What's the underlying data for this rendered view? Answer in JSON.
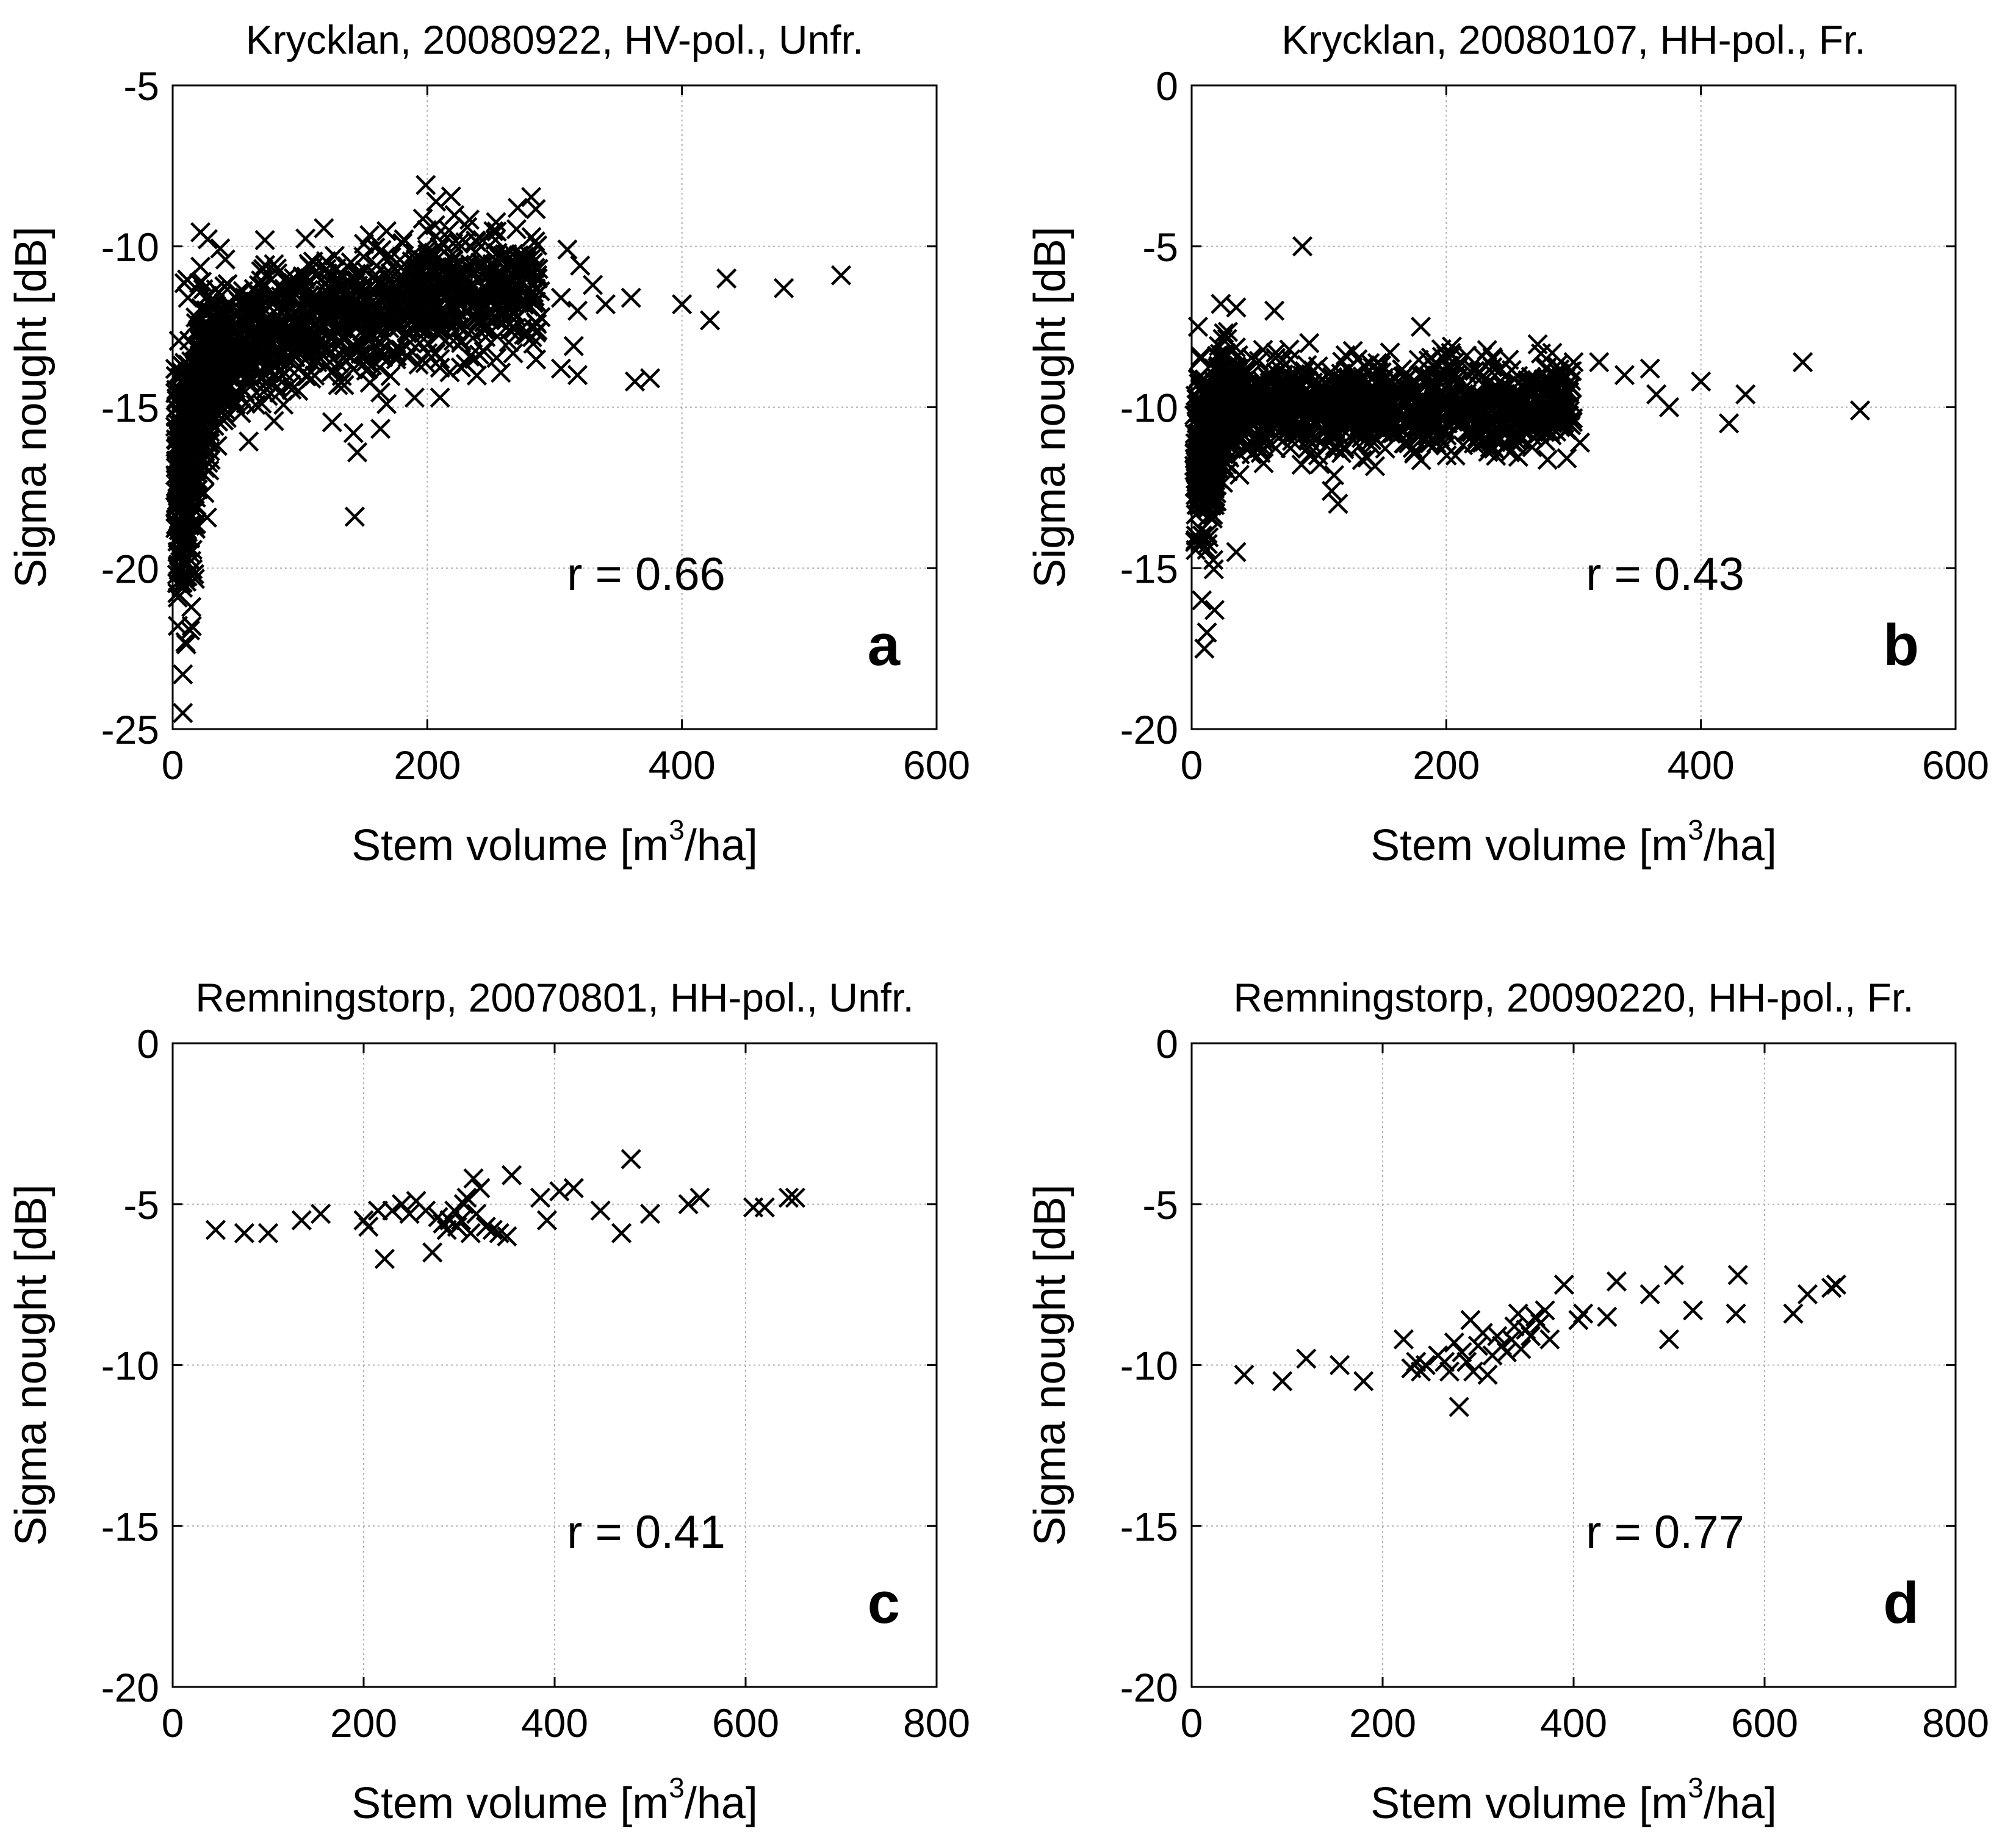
{
  "figure": {
    "description_keys": "four scatter panels of radar backscatter vs stem volume",
    "marker_color": "#000000",
    "grid_color": "#b0b0b0"
  },
  "chart_data": [
    {
      "type": "scatter",
      "panel": "a",
      "title": "Krycklan, 20080922, HV-pol., Unfr.",
      "xlabel": "Stem volume",
      "xlabel_unit_prefix": "[m",
      "xlabel_unit_sup": "3",
      "xlabel_unit_suffix": "/ha]",
      "ylabel": "Sigma nought  [dB]",
      "xlim": [
        0,
        600
      ],
      "ylim": [
        -25,
        -5
      ],
      "xticks": [
        0,
        200,
        400,
        600
      ],
      "yticks": [
        -25,
        -20,
        -15,
        -10,
        -5
      ],
      "annotation": "r = 0.66",
      "grid": true,
      "cluster": {
        "seed": 11,
        "count": 1600,
        "x": [
          2,
          290
        ],
        "model": "a",
        "a": -17.5,
        "b": 1.1,
        "vmin": 4,
        "noise": 1.0,
        "frac_low": 0.25
      },
      "outliers": [
        [
          310,
          -10.1
        ],
        [
          320,
          -10.6
        ],
        [
          330,
          -11.2
        ],
        [
          305,
          -11.6
        ],
        [
          318,
          -12.0
        ],
        [
          340,
          -11.8
        ],
        [
          315,
          -13.1
        ],
        [
          305,
          -13.8
        ],
        [
          318,
          -14.0
        ],
        [
          360,
          -11.6
        ],
        [
          363,
          -14.2
        ],
        [
          375,
          -14.1
        ],
        [
          400,
          -11.8
        ],
        [
          422,
          -12.3
        ],
        [
          435,
          -11.0
        ],
        [
          480,
          -11.3
        ],
        [
          525,
          -10.9
        ],
        [
          143,
          -18.4
        ],
        [
          145,
          -16.4
        ],
        [
          142,
          -15.8
        ],
        [
          168,
          -14.9
        ],
        [
          190,
          -14.7
        ],
        [
          210,
          -14.7
        ],
        [
          255,
          -12.8
        ],
        [
          270,
          -12.2
        ],
        [
          140,
          -10.5
        ],
        [
          12,
          -11.6
        ],
        [
          8,
          -24.5
        ],
        [
          8,
          -23.3
        ],
        [
          10,
          -22.3
        ],
        [
          15,
          -21.8
        ],
        [
          6,
          -19.3
        ]
      ]
    },
    {
      "type": "scatter",
      "panel": "b",
      "title": "Krycklan, 20080107, HH-pol., Fr.",
      "xlabel": "Stem volume",
      "xlabel_unit_prefix": "[m",
      "xlabel_unit_sup": "3",
      "xlabel_unit_suffix": "/ha]",
      "ylabel": "Sigma nought  [dB]",
      "xlim": [
        0,
        600
      ],
      "ylim": [
        -20,
        0
      ],
      "xticks": [
        0,
        200,
        400,
        600
      ],
      "yticks": [
        -20,
        -15,
        -10,
        -5,
        0
      ],
      "annotation": "r = 0.43",
      "grid": true,
      "cluster": {
        "seed": 23,
        "count": 1600,
        "x": [
          2,
          300
        ],
        "model": "b",
        "a": -10.0,
        "b": 0.0,
        "vmin": 4,
        "noise": 0.7,
        "frac_low": 0.15
      },
      "outliers": [
        [
          87,
          -5.0
        ],
        [
          35,
          -6.9
        ],
        [
          65,
          -7.0
        ],
        [
          5,
          -7.5
        ],
        [
          20,
          -8.4
        ],
        [
          180,
          -7.5
        ],
        [
          300,
          -8.6
        ],
        [
          320,
          -8.6
        ],
        [
          340,
          -9.0
        ],
        [
          360,
          -8.8
        ],
        [
          365,
          -9.6
        ],
        [
          375,
          -10.0
        ],
        [
          400,
          -9.2
        ],
        [
          422,
          -10.5
        ],
        [
          435,
          -9.6
        ],
        [
          480,
          -8.6
        ],
        [
          525,
          -10.1
        ],
        [
          305,
          -11.1
        ],
        [
          295,
          -10.7
        ],
        [
          250,
          -11.4
        ],
        [
          115,
          -13.0
        ],
        [
          110,
          -12.6
        ],
        [
          35,
          -14.5
        ],
        [
          10,
          -17.5
        ],
        [
          12,
          -17.0
        ],
        [
          18,
          -16.3
        ],
        [
          8,
          -16.0
        ]
      ]
    },
    {
      "type": "scatter",
      "panel": "c",
      "title": "Remningstorp, 20070801, HH-pol., Unfr.",
      "xlabel": "Stem volume",
      "xlabel_unit_prefix": "[m",
      "xlabel_unit_sup": "3",
      "xlabel_unit_suffix": "/ha]",
      "ylabel": "Sigma nought  [dB]",
      "xlim": [
        0,
        800
      ],
      "ylim": [
        -20,
        0
      ],
      "xticks": [
        0,
        200,
        400,
        600,
        800
      ],
      "yticks": [
        -20,
        -15,
        -10,
        -5,
        0
      ],
      "annotation": "r = 0.41",
      "grid": true,
      "points": [
        [
          45,
          -5.8
        ],
        [
          75,
          -5.9
        ],
        [
          100,
          -5.9
        ],
        [
          135,
          -5.5
        ],
        [
          155,
          -5.3
        ],
        [
          200,
          -5.5
        ],
        [
          205,
          -5.7
        ],
        [
          215,
          -5.2
        ],
        [
          222,
          -6.7
        ],
        [
          230,
          -5.2
        ],
        [
          240,
          -5.0
        ],
        [
          248,
          -5.3
        ],
        [
          255,
          -4.9
        ],
        [
          265,
          -5.2
        ],
        [
          272,
          -6.5
        ],
        [
          278,
          -5.4
        ],
        [
          283,
          -5.6
        ],
        [
          287,
          -5.8
        ],
        [
          290,
          -5.5
        ],
        [
          295,
          -5.2
        ],
        [
          298,
          -5.7
        ],
        [
          302,
          -5.5
        ],
        [
          305,
          -5.0
        ],
        [
          308,
          -4.8
        ],
        [
          312,
          -5.9
        ],
        [
          315,
          -4.2
        ],
        [
          318,
          -5.3
        ],
        [
          322,
          -4.5
        ],
        [
          328,
          -5.7
        ],
        [
          335,
          -5.8
        ],
        [
          342,
          -5.9
        ],
        [
          350,
          -6.0
        ],
        [
          355,
          -4.1
        ],
        [
          385,
          -4.8
        ],
        [
          392,
          -5.5
        ],
        [
          405,
          -4.6
        ],
        [
          420,
          -4.5
        ],
        [
          448,
          -5.2
        ],
        [
          470,
          -5.9
        ],
        [
          480,
          -3.6
        ],
        [
          500,
          -5.3
        ],
        [
          540,
          -5.0
        ],
        [
          552,
          -4.8
        ],
        [
          608,
          -5.1
        ],
        [
          620,
          -5.1
        ],
        [
          645,
          -4.8
        ],
        [
          652,
          -4.8
        ]
      ]
    },
    {
      "type": "scatter",
      "panel": "d",
      "title": "Remningstorp, 20090220, HH-pol., Fr.",
      "xlabel": "Stem volume",
      "xlabel_unit_prefix": "[m",
      "xlabel_unit_sup": "3",
      "xlabel_unit_suffix": "/ha]",
      "ylabel": "Sigma nought  [dB]",
      "xlim": [
        0,
        800
      ],
      "ylim": [
        -20,
        0
      ],
      "xticks": [
        0,
        200,
        400,
        600,
        800
      ],
      "yticks": [
        -20,
        -15,
        -10,
        -5,
        0
      ],
      "annotation": "r = 0.77",
      "grid": true,
      "points": [
        [
          55,
          -10.3
        ],
        [
          95,
          -10.5
        ],
        [
          120,
          -9.8
        ],
        [
          155,
          -10.0
        ],
        [
          180,
          -10.5
        ],
        [
          222,
          -9.2
        ],
        [
          230,
          -10.1
        ],
        [
          235,
          -9.9
        ],
        [
          240,
          -10.2
        ],
        [
          245,
          -10.0
        ],
        [
          258,
          -9.7
        ],
        [
          265,
          -9.9
        ],
        [
          270,
          -10.2
        ],
        [
          275,
          -9.3
        ],
        [
          280,
          -11.3
        ],
        [
          283,
          -9.6
        ],
        [
          288,
          -9.9
        ],
        [
          292,
          -8.6
        ],
        [
          295,
          -10.2
        ],
        [
          300,
          -9.4
        ],
        [
          305,
          -9.0
        ],
        [
          310,
          -10.3
        ],
        [
          315,
          -9.7
        ],
        [
          320,
          -9.1
        ],
        [
          325,
          -9.4
        ],
        [
          330,
          -9.6
        ],
        [
          335,
          -9.2
        ],
        [
          338,
          -8.8
        ],
        [
          342,
          -8.4
        ],
        [
          345,
          -9.5
        ],
        [
          350,
          -8.9
        ],
        [
          355,
          -9.1
        ],
        [
          360,
          -8.5
        ],
        [
          365,
          -8.7
        ],
        [
          370,
          -8.3
        ],
        [
          375,
          -9.2
        ],
        [
          390,
          -7.5
        ],
        [
          405,
          -8.6
        ],
        [
          410,
          -8.4
        ],
        [
          435,
          -8.5
        ],
        [
          445,
          -7.4
        ],
        [
          480,
          -7.8
        ],
        [
          500,
          -9.2
        ],
        [
          505,
          -7.2
        ],
        [
          525,
          -8.3
        ],
        [
          570,
          -8.4
        ],
        [
          572,
          -7.2
        ],
        [
          630,
          -8.4
        ],
        [
          645,
          -7.8
        ],
        [
          670,
          -7.6
        ],
        [
          675,
          -7.5
        ]
      ]
    }
  ]
}
